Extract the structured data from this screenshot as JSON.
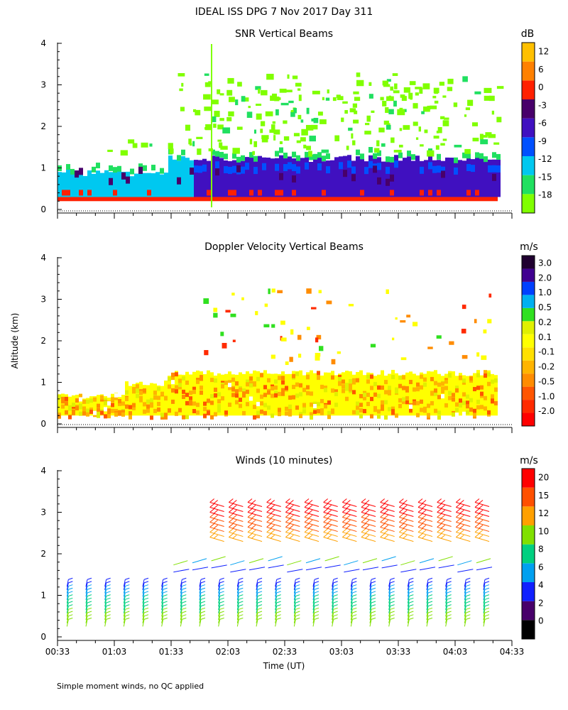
{
  "title": "IDEAL ISS DPG    7 Nov 2017 Day 311",
  "ylabel": "Altitude (km)",
  "xlabel": "Time (UT)",
  "footnote": "Simple moment winds, no QC applied",
  "colors": {
    "snr": [
      "#80ff00",
      "#20e060",
      "#00c8f0",
      "#0050ff",
      "#4010c0",
      "#48006a",
      "#ff2000",
      "#ff8000",
      "#ffc000"
    ],
    "dop": [
      "#ff0000",
      "#ff2a00",
      "#ff5500",
      "#ff8c00",
      "#ffb400",
      "#ffe000",
      "#ffff00",
      "#e0f000",
      "#30e020",
      "#00b0f0",
      "#0040ff",
      "#400090",
      "#200030"
    ],
    "winds": [
      "#000000",
      "#48006a",
      "#1020ff",
      "#00a0f0",
      "#00d080",
      "#80e000",
      "#ffa000",
      "#ff5000",
      "#ff0000"
    ]
  },
  "chart_data": [
    {
      "type": "heatmap",
      "title": "SNR Vertical Beams",
      "units": "dB",
      "ylim": [
        0,
        4
      ],
      "yticks": [
        "0",
        "1",
        "2",
        "3",
        "4"
      ],
      "xlim": [
        "00:33",
        "04:33"
      ],
      "colorbar_labels": [
        "-18",
        "-15",
        "-12",
        "-9",
        "-6",
        "-3",
        "0",
        "6",
        "12"
      ],
      "levels": [
        {
          "alt_km": [
            0.2,
            0.3
          ],
          "value": "0 to 12"
        },
        {
          "alt_km": [
            0.3,
            0.8
          ],
          "value": "-9 to -3"
        },
        {
          "alt_km": [
            0.8,
            1.2
          ],
          "value": "-15 to -9"
        },
        {
          "alt_km": [
            1.2,
            3.3
          ],
          "value": "-18 to -15"
        }
      ]
    },
    {
      "type": "heatmap",
      "title": "Doppler Velocity Vertical Beams",
      "units": "m/s",
      "ylim": [
        0,
        4
      ],
      "yticks": [
        "0",
        "1",
        "2",
        "3",
        "4"
      ],
      "xlim": [
        "00:33",
        "04:33"
      ],
      "colorbar_labels": [
        "-2.0",
        "-1.0",
        "-0.5",
        "-0.2",
        "-0.1",
        "0.1",
        "0.2",
        "0.5",
        "1.0",
        "2.0",
        "3.0"
      ],
      "levels": [
        {
          "alt_km": [
            0.2,
            1.2
          ],
          "value": "-0.2 to 0.1"
        },
        {
          "alt_km": [
            1.2,
            3.3
          ],
          "value": "sparse"
        }
      ]
    },
    {
      "type": "scatter",
      "title": "Winds (10 minutes)",
      "units": "m/s",
      "ylim": [
        0,
        4
      ],
      "yticks": [
        "0",
        "1",
        "2",
        "3",
        "4"
      ],
      "xticks": [
        "00:33",
        "01:03",
        "01:33",
        "02:03",
        "02:33",
        "03:03",
        "03:33",
        "04:03",
        "04:33"
      ],
      "colorbar_labels": [
        "0",
        "2",
        "4",
        "6",
        "8",
        "10",
        "12",
        "15",
        "20"
      ],
      "profile_times": [
        "00:38",
        "00:48",
        "00:58",
        "01:08",
        "01:18",
        "01:28",
        "01:38",
        "01:48",
        "01:58",
        "02:08",
        "02:18",
        "02:28",
        "02:38",
        "02:48",
        "02:58",
        "03:08",
        "03:18",
        "03:28",
        "03:38",
        "03:48",
        "03:58",
        "04:08",
        "04:18"
      ],
      "low_winds": {
        "alt_km": [
          0.2,
          1.3
        ],
        "speed_ms": [
          4,
          12
        ],
        "direction": "southerly"
      },
      "mid_winds": {
        "alt_km": [
          1.6,
          2.0
        ],
        "speed_ms": [
          6,
          12
        ],
        "direction": "westerly"
      },
      "upper_winds": {
        "alt_km": [
          2.4,
          3.4
        ],
        "speed_ms": [
          15,
          22
        ],
        "direction": "westerly"
      }
    }
  ]
}
